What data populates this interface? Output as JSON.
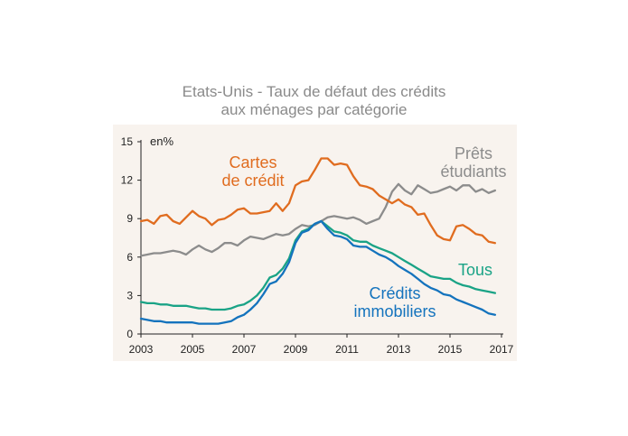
{
  "title_line1": "Etats-Unis - Taux de défaut des crédits",
  "title_line2": "aux ménages par catégorie",
  "chart_data": {
    "type": "line",
    "unit_label": "en%",
    "ylim": [
      0,
      15
    ],
    "yticks": [
      0,
      3,
      6,
      9,
      12,
      15
    ],
    "xlim": [
      2003,
      2017
    ],
    "xticks": [
      2003,
      2005,
      2007,
      2009,
      2011,
      2013,
      2015,
      2017
    ],
    "grid": false,
    "colors": {
      "cartes": "#e06c1f",
      "prets": "#8c8c8c",
      "tous": "#1aa386",
      "immo": "#1473bd",
      "background": "#f8f3ee"
    },
    "series": [
      {
        "name": "Cartes de crédit",
        "key": "cartes",
        "label_lines": [
          "Cartes",
          "de crédit"
        ],
        "x": [
          2003.0,
          2003.25,
          2003.5,
          2003.75,
          2004.0,
          2004.25,
          2004.5,
          2004.75,
          2005.0,
          2005.25,
          2005.5,
          2005.75,
          2006.0,
          2006.25,
          2006.5,
          2006.75,
          2007.0,
          2007.25,
          2007.5,
          2007.75,
          2008.0,
          2008.25,
          2008.5,
          2008.75,
          2009.0,
          2009.25,
          2009.5,
          2009.75,
          2010.0,
          2010.25,
          2010.5,
          2010.75,
          2011.0,
          2011.25,
          2011.5,
          2011.75,
          2012.0,
          2012.25,
          2012.5,
          2012.75,
          2013.0,
          2013.25,
          2013.5,
          2013.75,
          2014.0,
          2014.25,
          2014.5,
          2014.75,
          2015.0,
          2015.25,
          2015.5,
          2015.75,
          2016.0,
          2016.25,
          2016.5,
          2016.75
        ],
        "values": [
          8.8,
          8.9,
          8.6,
          9.2,
          9.3,
          8.8,
          8.6,
          9.1,
          9.6,
          9.2,
          9.0,
          8.5,
          8.9,
          9.0,
          9.3,
          9.7,
          9.8,
          9.4,
          9.4,
          9.5,
          9.6,
          10.2,
          9.6,
          10.2,
          11.6,
          11.9,
          12.0,
          12.8,
          13.7,
          13.7,
          13.2,
          13.3,
          13.2,
          12.3,
          11.6,
          11.5,
          11.3,
          10.8,
          10.5,
          10.2,
          10.5,
          10.1,
          9.9,
          9.3,
          9.4,
          8.5,
          7.7,
          7.4,
          7.3,
          8.4,
          8.5,
          8.2,
          7.8,
          7.7,
          7.2,
          7.1
        ]
      },
      {
        "name": "Prêts étudiants",
        "key": "prets",
        "label_lines": [
          "Prêts",
          "étudiants"
        ],
        "x": [
          2003.0,
          2003.25,
          2003.5,
          2003.75,
          2004.0,
          2004.25,
          2004.5,
          2004.75,
          2005.0,
          2005.25,
          2005.5,
          2005.75,
          2006.0,
          2006.25,
          2006.5,
          2006.75,
          2007.0,
          2007.25,
          2007.5,
          2007.75,
          2008.0,
          2008.25,
          2008.5,
          2008.75,
          2009.0,
          2009.25,
          2009.5,
          2009.75,
          2010.0,
          2010.25,
          2010.5,
          2010.75,
          2011.0,
          2011.25,
          2011.5,
          2011.75,
          2012.0,
          2012.25,
          2012.5,
          2012.75,
          2013.0,
          2013.25,
          2013.5,
          2013.75,
          2014.0,
          2014.25,
          2014.5,
          2014.75,
          2015.0,
          2015.25,
          2015.5,
          2015.75,
          2016.0,
          2016.25,
          2016.5,
          2016.75
        ],
        "values": [
          6.1,
          6.2,
          6.3,
          6.3,
          6.4,
          6.5,
          6.4,
          6.2,
          6.6,
          6.9,
          6.6,
          6.4,
          6.7,
          7.1,
          7.1,
          6.9,
          7.3,
          7.6,
          7.5,
          7.4,
          7.6,
          7.8,
          7.7,
          7.8,
          8.2,
          8.5,
          8.4,
          8.5,
          8.8,
          9.1,
          9.2,
          9.1,
          9.0,
          9.1,
          8.9,
          8.6,
          8.8,
          9.0,
          9.9,
          11.1,
          11.7,
          11.2,
          10.9,
          11.6,
          11.3,
          11.0,
          11.1,
          11.3,
          11.5,
          11.2,
          11.6,
          11.6,
          11.1,
          11.3,
          11.0,
          11.2
        ]
      },
      {
        "name": "Tous",
        "key": "tous",
        "label_lines": [
          "Tous"
        ],
        "x": [
          2003.0,
          2003.25,
          2003.5,
          2003.75,
          2004.0,
          2004.25,
          2004.5,
          2004.75,
          2005.0,
          2005.25,
          2005.5,
          2005.75,
          2006.0,
          2006.25,
          2006.5,
          2006.75,
          2007.0,
          2007.25,
          2007.5,
          2007.75,
          2008.0,
          2008.25,
          2008.5,
          2008.75,
          2009.0,
          2009.25,
          2009.5,
          2009.75,
          2010.0,
          2010.25,
          2010.5,
          2010.75,
          2011.0,
          2011.25,
          2011.5,
          2011.75,
          2012.0,
          2012.25,
          2012.5,
          2012.75,
          2013.0,
          2013.25,
          2013.5,
          2013.75,
          2014.0,
          2014.25,
          2014.5,
          2014.75,
          2015.0,
          2015.25,
          2015.5,
          2015.75,
          2016.0,
          2016.25,
          2016.5,
          2016.75
        ],
        "values": [
          2.5,
          2.4,
          2.4,
          2.3,
          2.3,
          2.2,
          2.2,
          2.2,
          2.1,
          2.0,
          2.0,
          1.9,
          1.9,
          1.9,
          2.0,
          2.2,
          2.3,
          2.6,
          3.0,
          3.6,
          4.4,
          4.6,
          5.1,
          5.9,
          7.3,
          8.0,
          8.2,
          8.6,
          8.8,
          8.4,
          8.0,
          7.9,
          7.7,
          7.3,
          7.2,
          7.2,
          6.9,
          6.7,
          6.5,
          6.3,
          6.0,
          5.7,
          5.4,
          5.1,
          4.8,
          4.5,
          4.4,
          4.3,
          4.3,
          4.0,
          3.8,
          3.7,
          3.5,
          3.4,
          3.3,
          3.2
        ]
      },
      {
        "name": "Crédits immobiliers",
        "key": "immo",
        "label_lines": [
          "Crédits",
          "immobiliers"
        ],
        "x": [
          2003.0,
          2003.25,
          2003.5,
          2003.75,
          2004.0,
          2004.25,
          2004.5,
          2004.75,
          2005.0,
          2005.25,
          2005.5,
          2005.75,
          2006.0,
          2006.25,
          2006.5,
          2006.75,
          2007.0,
          2007.25,
          2007.5,
          2007.75,
          2008.0,
          2008.25,
          2008.5,
          2008.75,
          2009.0,
          2009.25,
          2009.5,
          2009.75,
          2010.0,
          2010.25,
          2010.5,
          2010.75,
          2011.0,
          2011.25,
          2011.5,
          2011.75,
          2012.0,
          2012.25,
          2012.5,
          2012.75,
          2013.0,
          2013.25,
          2013.5,
          2013.75,
          2014.0,
          2014.25,
          2014.5,
          2014.75,
          2015.0,
          2015.25,
          2015.5,
          2015.75,
          2016.0,
          2016.25,
          2016.5,
          2016.75
        ],
        "values": [
          1.2,
          1.1,
          1.0,
          1.0,
          0.9,
          0.9,
          0.9,
          0.9,
          0.9,
          0.8,
          0.8,
          0.8,
          0.8,
          0.9,
          1.0,
          1.3,
          1.5,
          1.9,
          2.4,
          3.1,
          3.9,
          4.1,
          4.7,
          5.6,
          7.1,
          7.9,
          8.1,
          8.6,
          8.8,
          8.2,
          7.7,
          7.6,
          7.4,
          6.9,
          6.8,
          6.8,
          6.5,
          6.2,
          6.0,
          5.7,
          5.3,
          5.0,
          4.7,
          4.3,
          3.9,
          3.6,
          3.4,
          3.1,
          3.0,
          2.7,
          2.5,
          2.3,
          2.1,
          1.9,
          1.6,
          1.5
        ]
      }
    ]
  }
}
